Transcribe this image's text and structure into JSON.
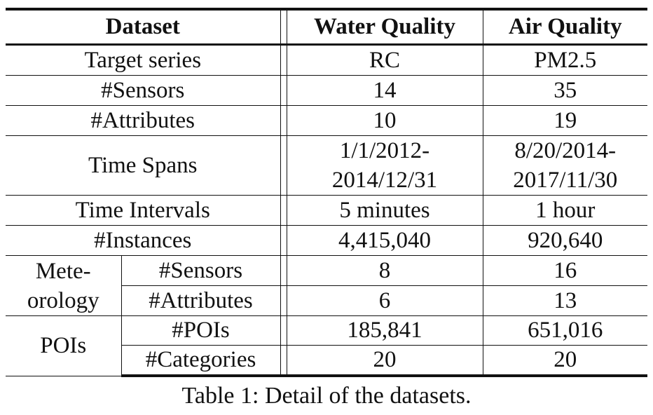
{
  "table": {
    "headers": {
      "dataset": "Dataset",
      "water": "Water Quality",
      "air": "Air Quality"
    },
    "rows": {
      "target_series": {
        "label": "Target series",
        "water": "RC",
        "air": "PM2.5"
      },
      "sensors": {
        "label": "#Sensors",
        "water": "14",
        "air": "35"
      },
      "attributes": {
        "label": "#Attributes",
        "water": "10",
        "air": "19"
      },
      "time_spans": {
        "label": "Time Spans",
        "water_line1": "1/1/2012-",
        "water_line2": "2014/12/31",
        "air_line1": "8/20/2014-",
        "air_line2": "2017/11/30"
      },
      "time_intervals": {
        "label": "Time Intervals",
        "water": "5 minutes",
        "air": "1 hour"
      },
      "instances": {
        "label": "#Instances",
        "water": "4,415,040",
        "air": "920,640"
      }
    },
    "meteorology": {
      "group_line1": "Mete-",
      "group_line2": "orology",
      "sensors": {
        "label": "#Sensors",
        "water": "8",
        "air": "16"
      },
      "attributes": {
        "label": "#Attributes",
        "water": "6",
        "air": "13"
      }
    },
    "pois": {
      "group": "POIs",
      "pois": {
        "label": "#POIs",
        "water": "185,841",
        "air": "651,016"
      },
      "categories": {
        "label": "#Categories",
        "water": "20",
        "air": "20"
      }
    }
  },
  "caption": "Table 1: Detail of the datasets."
}
